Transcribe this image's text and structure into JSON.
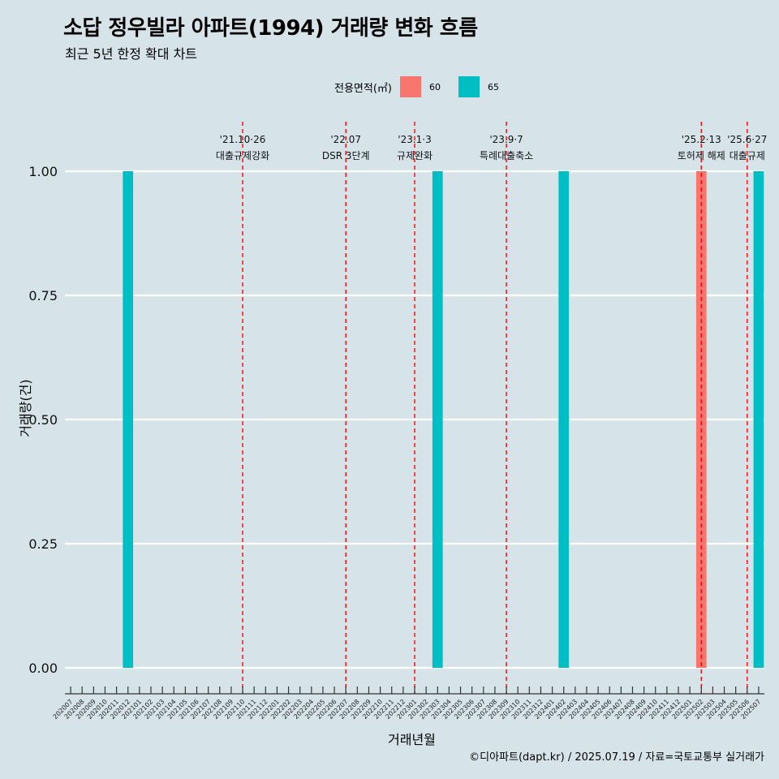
{
  "title": "소답 정우빌라 아파트(1994) 거래량 변화 흐름",
  "subtitle": "최근 5년 한정 확대 차트",
  "caption": "©디아파트(dapt.kr) / 2025.07.19 / 자료=국토교통부 실거래가",
  "legend": {
    "title": "전용면적(㎡)",
    "items": [
      {
        "label": "60",
        "color": "#f8766d"
      },
      {
        "label": "65",
        "color": "#00bfc4"
      }
    ]
  },
  "chart_data": {
    "type": "bar",
    "xlabel": "거래년월",
    "ylabel": "거래량(건)",
    "ylim": [
      0,
      1
    ],
    "yticks": [
      "0.00",
      "0.25",
      "0.50",
      "0.75",
      "1.00"
    ],
    "grid": true,
    "legend_position": "top",
    "categories": [
      "202007",
      "202008",
      "202009",
      "202010",
      "202011",
      "202012",
      "202101",
      "202102",
      "202103",
      "202104",
      "202105",
      "202106",
      "202107",
      "202108",
      "202109",
      "202110",
      "202111",
      "202112",
      "202201",
      "202202",
      "202203",
      "202204",
      "202205",
      "202206",
      "202207",
      "202208",
      "202209",
      "202210",
      "202211",
      "202212",
      "202301",
      "202302",
      "202303",
      "202304",
      "202305",
      "202306",
      "202307",
      "202308",
      "202309",
      "202310",
      "202311",
      "202312",
      "202401",
      "202402",
      "202403",
      "202404",
      "202405",
      "202406",
      "202407",
      "202408",
      "202409",
      "202410",
      "202411",
      "202412",
      "202501",
      "202502",
      "202503",
      "202504",
      "202505",
      "202506",
      "202507"
    ],
    "series": [
      {
        "name": "60",
        "color": "#f8766d",
        "points": [
          {
            "x": "202502",
            "y": 1
          }
        ]
      },
      {
        "name": "65",
        "color": "#00bfc4",
        "points": [
          {
            "x": "202012",
            "y": 1
          },
          {
            "x": "202303",
            "y": 1
          },
          {
            "x": "202402",
            "y": 1
          },
          {
            "x": "202507",
            "y": 1
          }
        ]
      }
    ],
    "annotations": [
      {
        "x": "202110",
        "date": "'21.10·26",
        "label": "대출규제강화"
      },
      {
        "x": "202207",
        "date": "'22.07",
        "label": "DSR 3단계"
      },
      {
        "x": "202301",
        "date": "'23.1·3",
        "label": "규제완화"
      },
      {
        "x": "202309",
        "date": "'23.9·7",
        "label": "특례대출축소"
      },
      {
        "x": "202502",
        "date": "'25.2·13",
        "label": "토허제 해제"
      },
      {
        "x": "202506",
        "date": "'25.6·27",
        "label": "대출규제"
      }
    ]
  }
}
